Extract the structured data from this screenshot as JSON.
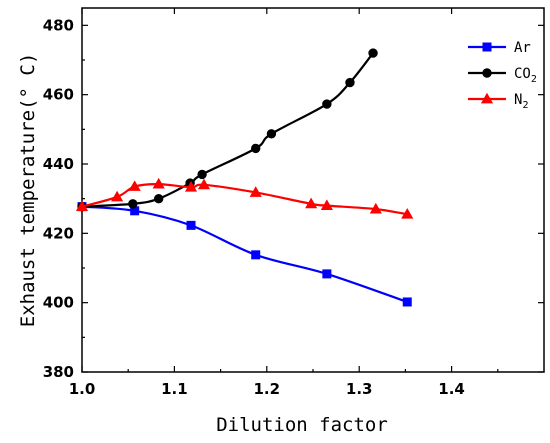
{
  "chart_data": {
    "type": "line",
    "xlabel": "Dilution factor",
    "ylabel": "Exhaust temperature(° C)",
    "xlim": [
      1.0,
      1.5
    ],
    "ylim": [
      380,
      485
    ],
    "xticks": [
      1.0,
      1.1,
      1.2,
      1.3,
      1.4
    ],
    "xtick_labels": [
      "1.0",
      "1.1",
      "1.2",
      "1.3",
      "1.4"
    ],
    "yticks": [
      380,
      400,
      420,
      440,
      460,
      480
    ],
    "ytick_labels": [
      "380",
      "400",
      "420",
      "440",
      "460",
      "480"
    ],
    "grid": false,
    "legend_position": "top-right",
    "series": [
      {
        "name": "Ar",
        "legend_label": "Ar",
        "legend_sub": "",
        "color": "#0000ff",
        "marker": "square",
        "x": [
          1.0,
          1.057,
          1.118,
          1.188,
          1.265,
          1.352
        ],
        "y": [
          427.7,
          426.5,
          422.3,
          413.8,
          408.3,
          400.2
        ]
      },
      {
        "name": "CO2",
        "legend_label": "CO",
        "legend_sub": "2",
        "color": "#000000",
        "marker": "circle",
        "x": [
          1.0,
          1.055,
          1.083,
          1.117,
          1.13,
          1.188,
          1.205,
          1.265,
          1.29,
          1.315
        ],
        "y": [
          427.7,
          428.5,
          430.0,
          434.5,
          437.0,
          444.5,
          448.7,
          457.3,
          463.5,
          472.0
        ]
      },
      {
        "name": "N2",
        "legend_label": "N",
        "legend_sub": "2",
        "color": "#ff0000",
        "marker": "triangle",
        "x": [
          1.0,
          1.038,
          1.057,
          1.083,
          1.118,
          1.132,
          1.188,
          1.248,
          1.265,
          1.318,
          1.352
        ],
        "y": [
          427.7,
          430.5,
          433.5,
          434.2,
          433.3,
          434.0,
          431.8,
          428.5,
          428.0,
          427.0,
          425.5
        ]
      }
    ]
  }
}
